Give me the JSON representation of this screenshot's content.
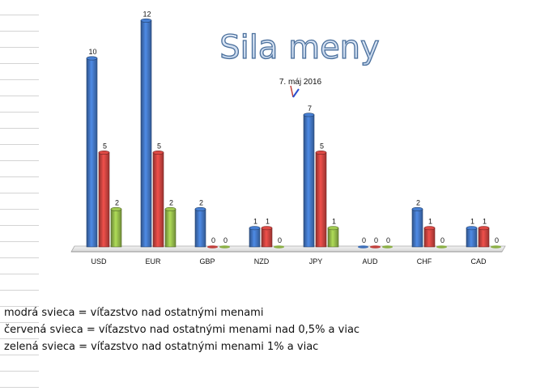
{
  "chart_data": {
    "type": "bar",
    "title": "Sila meny",
    "annotation": "7. máj 2016",
    "categories": [
      "USD",
      "EUR",
      "GBP",
      "NZD",
      "JPY",
      "AUD",
      "CHF",
      "CAD"
    ],
    "series": [
      {
        "color": "#3e6fb8",
        "values": [
          10,
          12,
          2,
          1,
          7,
          0,
          2,
          1
        ]
      },
      {
        "color": "#c0403c",
        "values": [
          5,
          5,
          0,
          1,
          5,
          0,
          1,
          1
        ]
      },
      {
        "color": "#8cb046",
        "values": [
          2,
          2,
          0,
          0,
          1,
          0,
          0,
          0
        ]
      }
    ],
    "ylim": [
      0,
      12
    ],
    "grid": false,
    "legend": "bottom-left"
  },
  "legend_lines": [
    "modrá svieca = víťazstvo nad ostatnými menami",
    "červená svieca = víťazstvo nad ostatnými menami nad 0,5% a viac",
    "zelená svieca = víťazstvo nad ostatnými menami 1% a viac"
  ]
}
